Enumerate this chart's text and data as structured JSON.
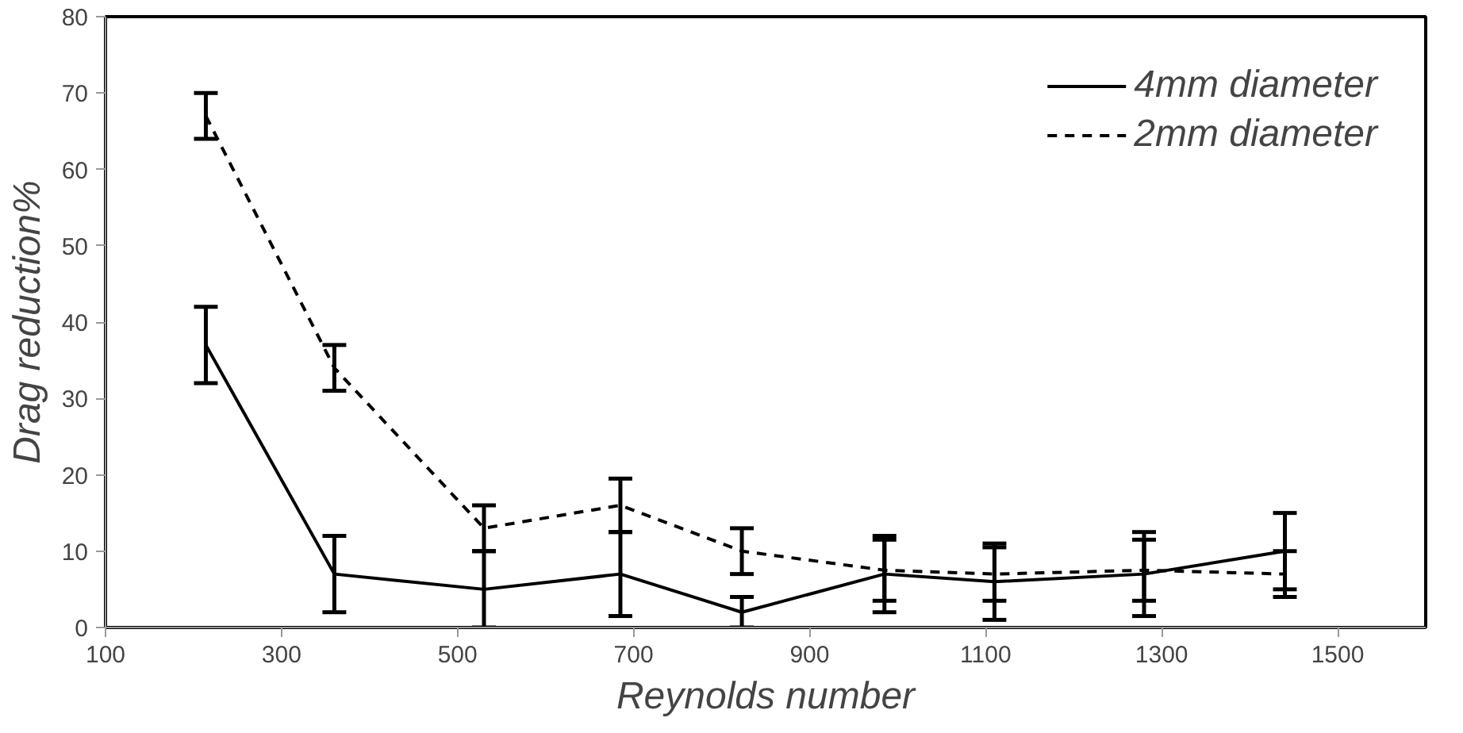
{
  "chart_data": {
    "type": "line",
    "xlabel": "Reynolds number",
    "ylabel": "Drag reduction%",
    "x": [
      214,
      360,
      530,
      685,
      823,
      985,
      1110,
      1280,
      1440
    ],
    "series": [
      {
        "name": "4mm diameter",
        "color": "#000000",
        "line_style": "solid",
        "values": [
          37,
          7,
          5,
          7,
          2,
          7,
          6,
          7,
          10
        ],
        "errors": [
          5,
          5,
          5,
          5.5,
          2,
          5,
          5,
          5.5,
          5
        ]
      },
      {
        "name": "2mm diameter",
        "color": "#000000",
        "line_style": "dashed",
        "values": [
          67,
          34,
          13,
          16,
          10,
          7.5,
          7,
          7.5,
          7
        ],
        "errors": [
          3,
          3,
          3,
          3.5,
          3,
          4,
          3.5,
          4,
          3
        ]
      }
    ],
    "xlim": [
      100,
      1600
    ],
    "ylim": [
      0,
      80
    ],
    "xticks": [
      100,
      300,
      500,
      700,
      900,
      1100,
      1300,
      1500
    ],
    "yticks": [
      0,
      10,
      20,
      30,
      40,
      50,
      60,
      70,
      80
    ],
    "grid": false,
    "legend": "top right"
  }
}
